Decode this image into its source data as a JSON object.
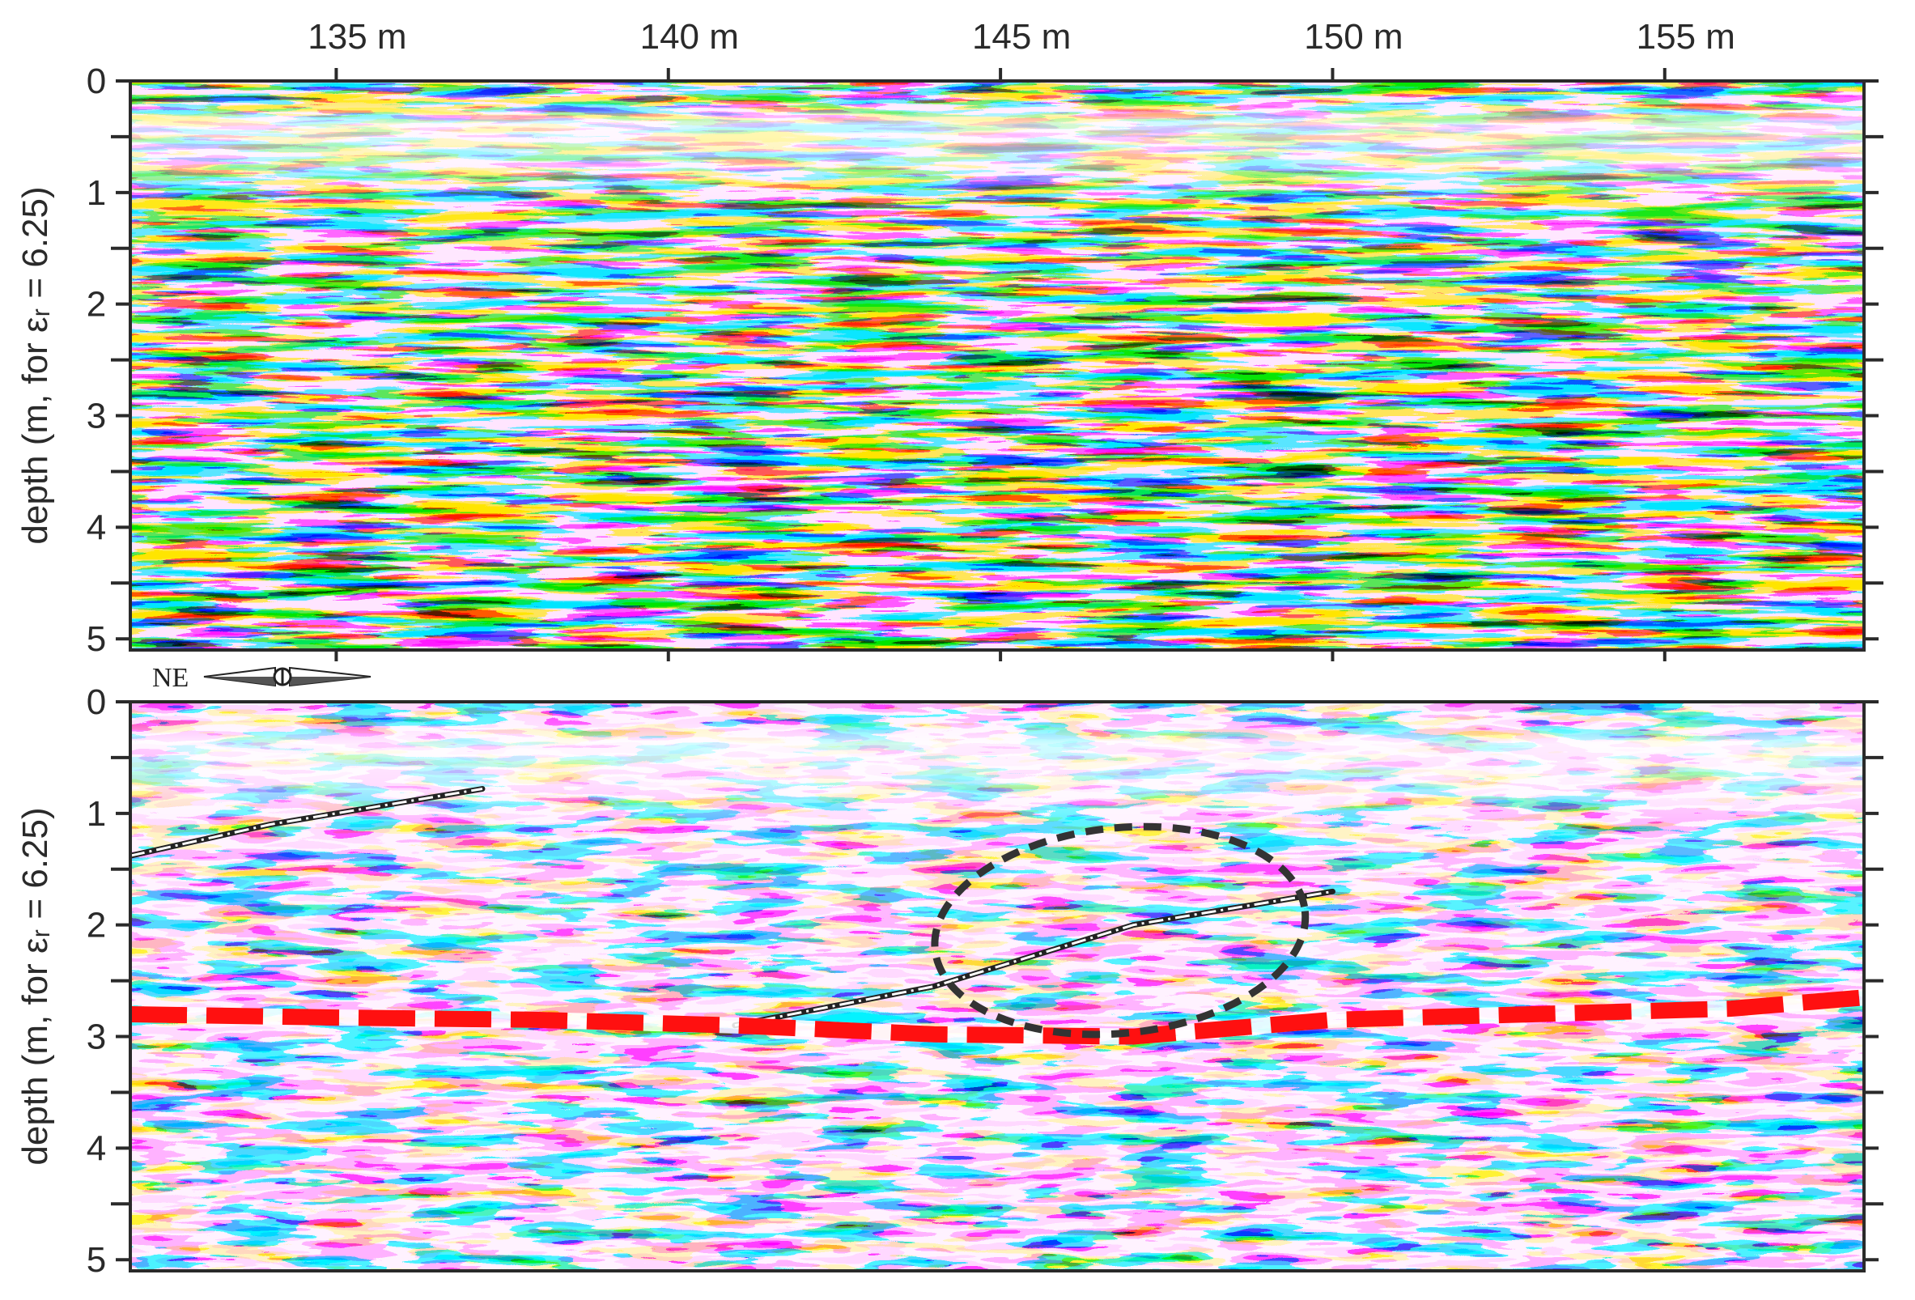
{
  "chart_data": [
    {
      "type": "heatmap",
      "panel": "top",
      "x": {
        "ticks": [
          135,
          140,
          145,
          150,
          155
        ],
        "tick_labels": [
          "135 m",
          "140 m",
          "145 m",
          "150 m",
          "155 m"
        ],
        "range": [
          131.9,
          158.0
        ],
        "position": "top"
      },
      "y": {
        "ticks": [
          0,
          1,
          2,
          3,
          4,
          5
        ],
        "tick_labels": [
          "0",
          "1",
          "2",
          "3",
          "4",
          "5"
        ],
        "minor_ticks": [
          0.5,
          1.5,
          2.5,
          3.5,
          4.5
        ],
        "range": [
          0,
          5.1
        ],
        "inverted": true
      },
      "ylabel": "depth (m, for εᵣ = 6.25)",
      "colors": {
        "positive": "#ff0000",
        "negative": "#0000ff",
        "neutral": "#ffffff"
      }
    },
    {
      "type": "heatmap",
      "panel": "bottom",
      "x": {
        "range": [
          131.9,
          158.0
        ]
      },
      "y": {
        "ticks": [
          0,
          1,
          2,
          3,
          4,
          5
        ],
        "tick_labels": [
          "0",
          "1",
          "2",
          "3",
          "4",
          "5"
        ],
        "minor_ticks": [
          0.5,
          1.5,
          2.5,
          3.5,
          4.5
        ],
        "range": [
          0,
          5.1
        ],
        "inverted": true
      },
      "ylabel": "depth (m, for εᵣ = 6.25)",
      "colors": {
        "positive": "#ff0000",
        "negative": "#0000ff",
        "neutral": "#ffffff"
      },
      "interpretation": {
        "red_dashed_line": {
          "color": "#ff1010",
          "x": [
            131.9,
            135,
            138,
            141,
            144,
            147,
            150,
            153,
            156,
            158
          ],
          "depth": [
            2.8,
            2.83,
            2.85,
            2.9,
            2.98,
            3.0,
            2.85,
            2.8,
            2.75,
            2.65
          ]
        },
        "ellipse": {
          "color": "#333333",
          "center_x": 146.8,
          "center_depth": 2.05,
          "x_radius": 2.8,
          "depth_radius": 0.92
        },
        "white_reflectors": [
          {
            "x": [
              131.9,
              134,
              136,
              137.2
            ],
            "depth": [
              1.38,
              1.1,
              0.9,
              0.78
            ]
          },
          {
            "x": [
              141,
              144,
              147,
              150
            ],
            "depth": [
              2.9,
              2.55,
              2.0,
              1.7
            ]
          }
        ]
      }
    }
  ],
  "compass": {
    "label": "NE"
  }
}
